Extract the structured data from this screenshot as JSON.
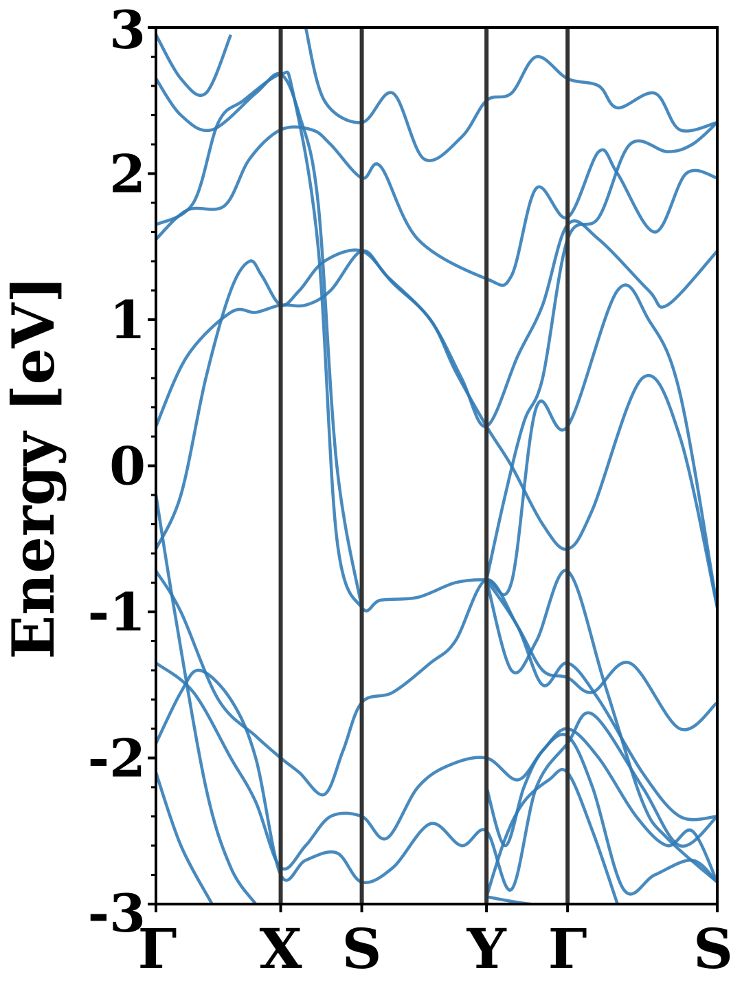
{
  "chart_data": {
    "type": "line",
    "ylabel": "Energy [eV]",
    "ylim": [
      -3,
      3
    ],
    "yticks": [
      -3,
      -2,
      -1,
      0,
      1,
      2,
      3
    ],
    "x_ticks": [
      {
        "label": "Γ",
        "x": 0.0
      },
      {
        "label": "X",
        "x": 1.0
      },
      {
        "label": "S",
        "x": 1.65
      },
      {
        "label": "Y",
        "x": 2.65
      },
      {
        "label": "Γ",
        "x": 3.3
      },
      {
        "label": "S",
        "x": 4.5
      }
    ],
    "xlim": [
      0,
      4.5
    ],
    "line_color": "#2f7ab5",
    "series": [
      {
        "values": [
          [
            0,
            0.27
          ],
          [
            0.25,
            0.75
          ],
          [
            0.6,
            1.05
          ],
          [
            0.8,
            1.05
          ],
          [
            1.0,
            1.1
          ],
          [
            1.2,
            1.1
          ],
          [
            1.4,
            1.2
          ],
          [
            1.65,
            1.47
          ],
          [
            1.85,
            1.3
          ],
          [
            2.2,
            1.0
          ],
          [
            2.4,
            0.65
          ],
          [
            2.65,
            0.27
          ],
          [
            2.85,
            0.0
          ],
          [
            3.1,
            -0.4
          ],
          [
            3.3,
            -0.57
          ],
          [
            3.5,
            -0.3
          ],
          [
            3.9,
            0.6
          ],
          [
            4.2,
            0.2
          ],
          [
            4.5,
            -0.97
          ]
        ]
      },
      {
        "values": [
          [
            0,
            -0.57
          ],
          [
            0.2,
            -0.2
          ],
          [
            0.4,
            0.6
          ],
          [
            0.6,
            1.2
          ],
          [
            0.75,
            1.4
          ],
          [
            0.85,
            1.3
          ],
          [
            1.0,
            1.1
          ],
          [
            1.15,
            1.2
          ],
          [
            1.35,
            1.4
          ],
          [
            1.65,
            1.47
          ],
          [
            1.9,
            1.25
          ],
          [
            2.2,
            1.0
          ],
          [
            2.45,
            0.6
          ],
          [
            2.65,
            0.27
          ],
          [
            2.9,
            0.75
          ],
          [
            3.1,
            1.1
          ],
          [
            3.3,
            1.65
          ],
          [
            3.55,
            1.55
          ],
          [
            3.95,
            1.2
          ],
          [
            4.1,
            1.1
          ],
          [
            4.5,
            1.47
          ]
        ]
      },
      {
        "values": [
          [
            0,
            1.55
          ],
          [
            0.25,
            1.75
          ],
          [
            0.55,
            1.78
          ],
          [
            0.75,
            2.1
          ],
          [
            1.0,
            2.3
          ],
          [
            1.25,
            2.3
          ],
          [
            1.4,
            2.2
          ],
          [
            1.65,
            1.97
          ],
          [
            1.8,
            2.05
          ],
          [
            2.1,
            1.55
          ],
          [
            2.65,
            1.28
          ],
          [
            2.85,
            1.3
          ],
          [
            3.05,
            1.9
          ],
          [
            3.3,
            1.7
          ],
          [
            3.55,
            2.15
          ],
          [
            3.7,
            2.0
          ],
          [
            4.0,
            1.6
          ],
          [
            4.25,
            2.0
          ],
          [
            4.5,
            1.97
          ]
        ]
      },
      {
        "values": [
          [
            0,
            1.65
          ],
          [
            0.3,
            1.8
          ],
          [
            0.5,
            2.35
          ],
          [
            0.7,
            2.5
          ],
          [
            1.0,
            2.68
          ],
          [
            1.1,
            2.55
          ],
          [
            1.3,
            1.5
          ],
          [
            1.45,
            -0.5
          ],
          [
            1.65,
            -0.97
          ],
          [
            1.8,
            -0.92
          ],
          [
            2.1,
            -0.9
          ],
          [
            2.4,
            -0.8
          ],
          [
            2.65,
            -0.78
          ],
          [
            2.85,
            -0.8
          ],
          [
            3.05,
            0.4
          ],
          [
            3.3,
            0.27
          ],
          [
            3.7,
            1.2
          ],
          [
            3.95,
            1.0
          ],
          [
            4.2,
            0.5
          ],
          [
            4.5,
            -0.97
          ]
        ]
      },
      {
        "values": [
          [
            0,
            2.65
          ],
          [
            0.2,
            2.4
          ],
          [
            0.45,
            2.3
          ],
          [
            0.8,
            2.55
          ],
          [
            1.0,
            2.68
          ],
          [
            1.15,
            2.4
          ],
          [
            1.3,
            1.8
          ],
          [
            1.45,
            0.0
          ],
          [
            1.65,
            -0.97
          ]
        ]
      },
      {
        "values": [
          [
            0,
            2.95
          ],
          [
            0.2,
            2.65
          ],
          [
            0.4,
            2.55
          ],
          [
            0.6,
            2.95
          ]
        ]
      },
      {
        "values": [
          [
            1.2,
            3.0
          ],
          [
            1.35,
            2.5
          ],
          [
            1.65,
            2.35
          ],
          [
            1.9,
            2.55
          ],
          [
            2.15,
            2.1
          ],
          [
            2.45,
            2.25
          ],
          [
            2.65,
            2.5
          ],
          [
            2.85,
            2.55
          ],
          [
            3.05,
            2.8
          ],
          [
            3.3,
            2.65
          ],
          [
            3.55,
            2.6
          ],
          [
            3.7,
            2.45
          ],
          [
            4.0,
            2.55
          ],
          [
            4.2,
            2.3
          ],
          [
            4.5,
            2.35
          ]
        ]
      },
      {
        "values": [
          [
            2.65,
            -0.78
          ],
          [
            2.8,
            -0.2
          ],
          [
            2.95,
            0.3
          ],
          [
            3.1,
            0.6
          ],
          [
            3.3,
            1.55
          ],
          [
            3.55,
            1.7
          ],
          [
            3.8,
            2.2
          ],
          [
            4.1,
            2.15
          ],
          [
            4.3,
            2.2
          ],
          [
            4.5,
            2.35
          ]
        ]
      },
      {
        "values": [
          [
            0,
            -0.72
          ],
          [
            0.2,
            -1.0
          ],
          [
            0.5,
            -1.6
          ],
          [
            0.8,
            -1.85
          ],
          [
            1.0,
            -2.0
          ],
          [
            1.15,
            -2.1
          ],
          [
            1.35,
            -2.25
          ],
          [
            1.5,
            -1.95
          ],
          [
            1.65,
            -1.62
          ],
          [
            1.9,
            -1.55
          ],
          [
            2.2,
            -1.35
          ],
          [
            2.4,
            -1.2
          ],
          [
            2.65,
            -0.78
          ],
          [
            2.9,
            -1.1
          ],
          [
            3.1,
            -1.4
          ],
          [
            3.3,
            -1.45
          ],
          [
            3.5,
            -1.55
          ],
          [
            3.8,
            -1.35
          ],
          [
            4.2,
            -1.8
          ],
          [
            4.5,
            -1.62
          ]
        ]
      },
      {
        "values": [
          [
            0,
            -1.35
          ],
          [
            0.3,
            -1.55
          ],
          [
            0.6,
            -2.0
          ],
          [
            0.8,
            -2.3
          ],
          [
            1.0,
            -2.75
          ],
          [
            1.2,
            -2.6
          ],
          [
            1.4,
            -2.4
          ],
          [
            1.65,
            -2.4
          ],
          [
            1.85,
            -2.55
          ],
          [
            2.1,
            -2.2
          ],
          [
            2.35,
            -2.05
          ],
          [
            2.65,
            -2.0
          ],
          [
            2.9,
            -2.15
          ],
          [
            3.1,
            -1.95
          ],
          [
            3.3,
            -1.8
          ],
          [
            3.55,
            -2.0
          ],
          [
            3.85,
            -2.4
          ],
          [
            4.1,
            -2.6
          ],
          [
            4.3,
            -2.5
          ],
          [
            4.5,
            -2.85
          ]
        ]
      },
      {
        "values": [
          [
            0,
            -1.9
          ],
          [
            0.2,
            -1.55
          ],
          [
            0.35,
            -1.4
          ],
          [
            0.6,
            -1.6
          ],
          [
            0.8,
            -2.0
          ],
          [
            1.0,
            -2.8
          ],
          [
            1.2,
            -2.7
          ],
          [
            1.45,
            -2.65
          ],
          [
            1.65,
            -2.85
          ],
          [
            1.9,
            -2.75
          ],
          [
            2.2,
            -2.45
          ],
          [
            2.45,
            -2.6
          ],
          [
            2.65,
            -2.5
          ],
          [
            2.85,
            -2.9
          ],
          [
            3.05,
            -2.2
          ],
          [
            3.3,
            -1.9
          ],
          [
            3.5,
            -1.7
          ],
          [
            3.9,
            -2.2
          ],
          [
            4.2,
            -2.6
          ],
          [
            4.5,
            -2.4
          ]
        ]
      },
      {
        "values": [
          [
            0,
            -2.1
          ],
          [
            0.2,
            -2.6
          ],
          [
            0.45,
            -3.0
          ]
        ]
      },
      {
        "values": [
          [
            0,
            -0.2
          ],
          [
            0.15,
            -1.0
          ],
          [
            0.4,
            -2.2
          ],
          [
            0.6,
            -2.75
          ],
          [
            0.8,
            -3.0
          ]
        ]
      },
      {
        "values": [
          [
            2.65,
            -2.95
          ],
          [
            3.0,
            -3.0
          ],
          [
            3.3,
            -3.0
          ]
        ]
      },
      {
        "values": [
          [
            2.65,
            -0.78
          ],
          [
            2.9,
            -1.1
          ],
          [
            3.1,
            -1.5
          ],
          [
            3.3,
            -1.35
          ],
          [
            3.55,
            -1.6
          ],
          [
            3.9,
            -2.1
          ],
          [
            4.2,
            -2.4
          ],
          [
            4.5,
            -2.4
          ]
        ]
      },
      {
        "values": [
          [
            2.65,
            -0.78
          ],
          [
            2.85,
            -1.4
          ],
          [
            3.05,
            -1.2
          ],
          [
            3.3,
            -0.72
          ],
          [
            3.6,
            -1.5
          ],
          [
            3.9,
            -2.3
          ],
          [
            4.1,
            -2.55
          ],
          [
            4.5,
            -2.85
          ]
        ]
      },
      {
        "values": [
          [
            2.65,
            -2.2
          ],
          [
            2.8,
            -2.6
          ],
          [
            2.95,
            -2.2
          ],
          [
            3.1,
            -1.95
          ],
          [
            3.3,
            -1.85
          ],
          [
            3.5,
            -2.2
          ],
          [
            3.75,
            -2.9
          ],
          [
            4.0,
            -2.8
          ],
          [
            4.3,
            -2.7
          ],
          [
            4.5,
            -2.85
          ]
        ]
      },
      {
        "values": [
          [
            2.65,
            -2.95
          ],
          [
            2.8,
            -2.55
          ],
          [
            2.95,
            -2.3
          ],
          [
            3.15,
            -2.15
          ],
          [
            3.3,
            -2.1
          ],
          [
            3.5,
            -2.5
          ],
          [
            3.7,
            -3.0
          ]
        ]
      }
    ]
  }
}
